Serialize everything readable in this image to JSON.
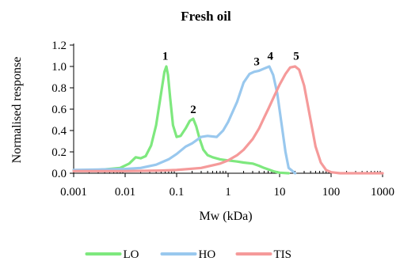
{
  "chart_data": {
    "type": "line",
    "title": "Fresh oil",
    "xlabel": "Mw (kDa)",
    "ylabel": "Normalised response",
    "x_scale": "log",
    "xlim": [
      0.001,
      1000
    ],
    "ylim": [
      0,
      1.2
    ],
    "xticks": [
      0.001,
      0.01,
      0.1,
      1,
      10,
      100,
      1000
    ],
    "xtick_labels": [
      "0.001",
      "0.01",
      "0.1",
      "1",
      "10",
      "100",
      "1000"
    ],
    "yticks": [
      0,
      0.2,
      0.4,
      0.6,
      0.8,
      1,
      1.2
    ],
    "ytick_labels": [
      "0.0",
      "0.2",
      "0.4",
      "0.6",
      "0.8",
      "1.0",
      "1.2"
    ],
    "legend_position": "bottom",
    "grid": false,
    "series": [
      {
        "name": "LO",
        "color": "#7ee87e",
        "x": [
          0.003,
          0.008,
          0.012,
          0.016,
          0.02,
          0.025,
          0.032,
          0.04,
          0.05,
          0.058,
          0.063,
          0.068,
          0.075,
          0.085,
          0.1,
          0.12,
          0.15,
          0.18,
          0.21,
          0.24,
          0.28,
          0.33,
          0.4,
          0.5,
          0.7,
          1.0,
          1.5,
          2.0,
          3.0,
          4.0,
          5.0,
          6.5,
          8.0,
          10.0,
          15.0
        ],
        "y": [
          0.03,
          0.05,
          0.09,
          0.15,
          0.14,
          0.16,
          0.26,
          0.45,
          0.75,
          0.95,
          1.0,
          0.92,
          0.7,
          0.45,
          0.34,
          0.35,
          0.42,
          0.49,
          0.51,
          0.44,
          0.32,
          0.22,
          0.17,
          0.15,
          0.13,
          0.12,
          0.11,
          0.1,
          0.09,
          0.07,
          0.05,
          0.03,
          0.015,
          0.005,
          0.0
        ]
      },
      {
        "name": "HO",
        "color": "#99c8ee",
        "x": [
          0.001,
          0.003,
          0.01,
          0.02,
          0.04,
          0.07,
          0.1,
          0.15,
          0.2,
          0.3,
          0.4,
          0.6,
          0.8,
          1.0,
          1.5,
          2.0,
          2.6,
          3.2,
          4.0,
          5.0,
          6.3,
          7.5,
          9.0,
          11.0,
          13.0,
          15.0,
          20.0
        ],
        "y": [
          0.03,
          0.035,
          0.04,
          0.05,
          0.08,
          0.13,
          0.18,
          0.25,
          0.28,
          0.34,
          0.35,
          0.34,
          0.4,
          0.48,
          0.67,
          0.85,
          0.93,
          0.95,
          0.96,
          0.98,
          1.0,
          0.92,
          0.75,
          0.45,
          0.2,
          0.05,
          0.0
        ]
      },
      {
        "name": "TIS",
        "color": "#f59a9a",
        "x": [
          0.001,
          0.01,
          0.05,
          0.1,
          0.3,
          0.7,
          1.0,
          1.5,
          2.0,
          3.0,
          4.0,
          5.0,
          6.0,
          8.0,
          10.0,
          13.0,
          16.0,
          20.0,
          24.0,
          30.0,
          40.0,
          50.0,
          63.0,
          80.0,
          100.0,
          150.0,
          1000.0
        ],
        "y": [
          0.02,
          0.02,
          0.025,
          0.03,
          0.05,
          0.09,
          0.12,
          0.17,
          0.22,
          0.32,
          0.42,
          0.52,
          0.6,
          0.73,
          0.83,
          0.93,
          0.99,
          1.0,
          0.97,
          0.82,
          0.5,
          0.25,
          0.1,
          0.03,
          0.01,
          0.0,
          0.0
        ]
      }
    ],
    "annotations": [
      {
        "text": "1",
        "x": 0.06,
        "y": 1.1
      },
      {
        "text": "2",
        "x": 0.21,
        "y": 0.6
      },
      {
        "text": "3",
        "x": 3.6,
        "y": 1.05
      },
      {
        "text": "4",
        "x": 6.6,
        "y": 1.1
      },
      {
        "text": "5",
        "x": 21.0,
        "y": 1.1
      }
    ]
  }
}
